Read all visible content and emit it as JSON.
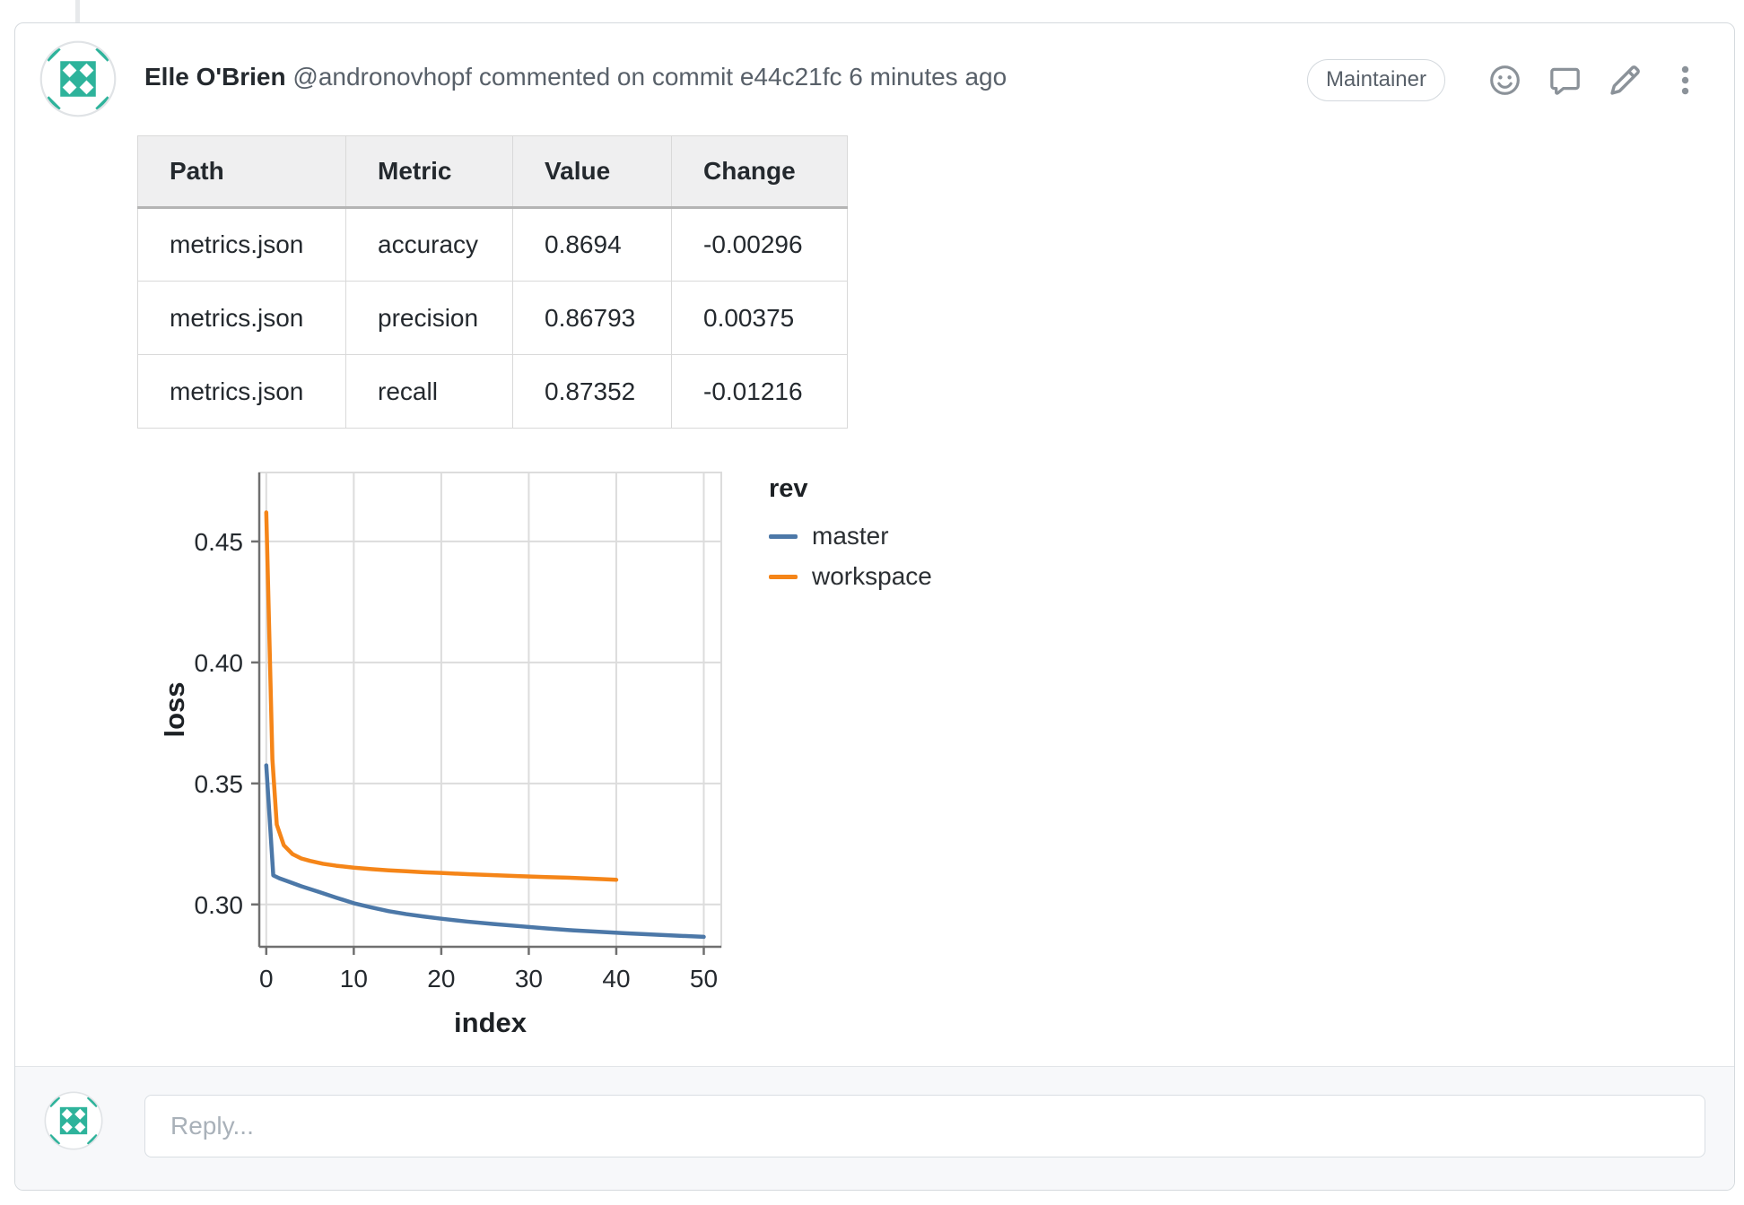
{
  "header": {
    "author": "Elle O'Brien",
    "handle": "@andronovhopf",
    "action": "commented on commit",
    "commit": "e44c21fc",
    "time": "6 minutes ago",
    "badge": "Maintainer",
    "icons": {
      "reaction": "smiley-face",
      "comment": "speech-bubble",
      "edit": "pencil",
      "more": "kebab-vertical-dots"
    }
  },
  "table": {
    "columns": [
      "Path",
      "Metric",
      "Value",
      "Change"
    ],
    "rows": [
      [
        "metrics.json",
        "accuracy",
        "0.8694",
        "-0.00296"
      ],
      [
        "metrics.json",
        "precision",
        "0.86793",
        "0.00375"
      ],
      [
        "metrics.json",
        "recall",
        "0.87352",
        "-0.01216"
      ]
    ]
  },
  "chart_data": {
    "type": "line",
    "title": "",
    "xlabel": "index",
    "ylabel": "loss",
    "xlim": [
      -0.8,
      52
    ],
    "ylim": [
      0.2825,
      0.4785
    ],
    "x_ticks": [
      0,
      10,
      20,
      30,
      40,
      50
    ],
    "y_ticks": [
      0.3,
      0.35,
      0.4,
      0.45
    ],
    "grid": true,
    "legend_title": "rev",
    "legend_position": "right-outside-top",
    "series": [
      {
        "name": "master",
        "color": "#4c78a8",
        "x": [
          0,
          0.8,
          1.5,
          2.5,
          4,
          6,
          8,
          10,
          12,
          14,
          16,
          18,
          20,
          23,
          26,
          29,
          32,
          35,
          38,
          41,
          44,
          47,
          50
        ],
        "y": [
          0.3575,
          0.312,
          0.3108,
          0.3095,
          0.3075,
          0.3052,
          0.3028,
          0.3005,
          0.2988,
          0.2972,
          0.296,
          0.295,
          0.2941,
          0.2929,
          0.2919,
          0.291,
          0.2901,
          0.2893,
          0.2887,
          0.2881,
          0.2876,
          0.2871,
          0.2866
        ]
      },
      {
        "name": "workspace",
        "color": "#f58518",
        "x": [
          0,
          0.7,
          1.2,
          2,
          3,
          4,
          5,
          6.5,
          8,
          10,
          12,
          14,
          16,
          18,
          20,
          23,
          26,
          29,
          32,
          35,
          38,
          40
        ],
        "y": [
          0.462,
          0.36,
          0.333,
          0.3245,
          0.3208,
          0.319,
          0.318,
          0.3168,
          0.316,
          0.3152,
          0.3146,
          0.3141,
          0.3137,
          0.3133,
          0.313,
          0.3125,
          0.3121,
          0.3117,
          0.3113,
          0.311,
          0.3105,
          0.3102
        ]
      }
    ]
  },
  "reply": {
    "placeholder": "Reply..."
  },
  "colors": {
    "avatar_teal": "#2eb39b",
    "card_border": "#d5dade",
    "muted_text": "#586069",
    "dark_text": "#24292e",
    "grid_line": "#dcdcdc",
    "axis_line": "#707070"
  }
}
